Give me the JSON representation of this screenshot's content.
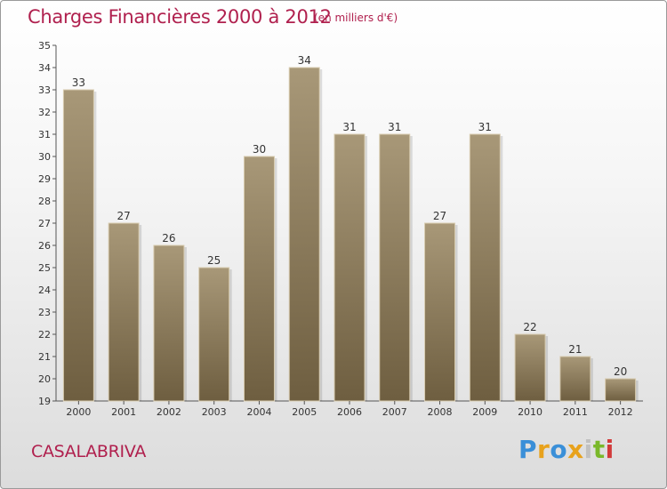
{
  "header": {
    "title": "Charges Financières 2000 à 2012",
    "subtitle": "(en milliers d'€)"
  },
  "footer": {
    "commune": "CASALABRIVA",
    "brand": [
      "P",
      "r",
      "o",
      "x",
      "i",
      "t",
      "i"
    ]
  },
  "colors": {
    "title": "#b0204e",
    "bar_top": "#a89878",
    "bar_bottom": "#6e5e40",
    "brand": [
      "#3a8fd8",
      "#e8a21c",
      "#3a8fd8",
      "#e8a21c",
      "#c0c0c0",
      "#7ab82a",
      "#d23a3a"
    ]
  },
  "chart_data": {
    "type": "bar",
    "categories": [
      "2000",
      "2001",
      "2002",
      "2003",
      "2004",
      "2005",
      "2006",
      "2007",
      "2008",
      "2009",
      "2010",
      "2011",
      "2012"
    ],
    "values": [
      33,
      27,
      26,
      25,
      30,
      34,
      31,
      31,
      27,
      31,
      22,
      21,
      20
    ],
    "ylim": [
      19,
      35
    ],
    "yticks": [
      19,
      20,
      21,
      22,
      23,
      24,
      25,
      26,
      27,
      28,
      29,
      30,
      31,
      32,
      33,
      34,
      35
    ],
    "grid": false,
    "data_labels": true
  }
}
